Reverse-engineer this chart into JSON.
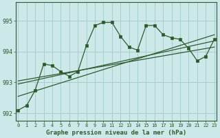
{
  "title": "Graphe pression niveau de la mer (hPa)",
  "bg_color": "#cce8e8",
  "plot_bg": "#cce8e8",
  "grid_color": "#aacccc",
  "line_color": "#2d5a2d",
  "marker_color": "#2d5a2d",
  "border_color": "#7aaa7a",
  "x_values": [
    0,
    1,
    2,
    3,
    4,
    5,
    6,
    7,
    8,
    9,
    10,
    11,
    12,
    13,
    14,
    15,
    16,
    17,
    18,
    19,
    20,
    21,
    22,
    23
  ],
  "y_main": [
    992.1,
    992.25,
    992.75,
    993.6,
    993.55,
    993.35,
    993.2,
    993.35,
    994.2,
    994.85,
    994.95,
    994.95,
    994.5,
    994.15,
    994.05,
    994.85,
    994.85,
    994.55,
    994.45,
    994.4,
    994.1,
    993.7,
    993.85,
    994.4
  ],
  "trend1_x": [
    0,
    23
  ],
  "trend1_y": [
    992.55,
    994.55
  ],
  "trend2_x": [
    0,
    23
  ],
  "trend2_y": [
    992.95,
    994.35
  ],
  "trend3_x": [
    0,
    23
  ],
  "trend3_y": [
    993.05,
    994.15
  ],
  "ylim": [
    991.75,
    995.6
  ],
  "yticks": [
    992,
    993,
    994,
    995
  ],
  "xlim": [
    -0.3,
    23.3
  ],
  "bottom_label_bg": "#cce8e8",
  "xlabel_fontsize": 6.5,
  "tick_fontsize": 5,
  "ytick_fontsize": 6
}
